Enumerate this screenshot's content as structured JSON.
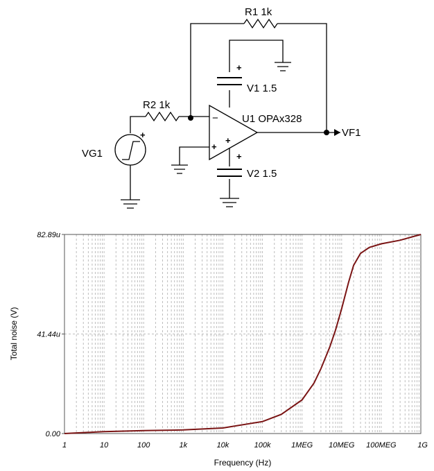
{
  "schematic": {
    "r1": {
      "name": "R1",
      "value": "1k"
    },
    "r2": {
      "name": "R2",
      "value": "1k"
    },
    "v1": {
      "name": "V1",
      "value": "1.5"
    },
    "v2": {
      "name": "V2",
      "value": "1.5"
    },
    "u1": {
      "name": "U1",
      "part": "OPAx328"
    },
    "source": "VG1",
    "output": "VF1",
    "plus_sign": "+",
    "minus_sign": "−"
  },
  "chart_data": {
    "type": "line",
    "xlabel": "Frequency (Hz)",
    "ylabel": "Total noise (V)",
    "x_scale": "log",
    "xlim": [
      1,
      1000000000
    ],
    "ylim": [
      0,
      82.89
    ],
    "grid": true,
    "x_tick_labels": [
      "1",
      "10",
      "100",
      "1k",
      "10k",
      "100k",
      "1MEG",
      "10MEG",
      "100MEG",
      "1G"
    ],
    "y_tick_labels": [
      "0.00",
      "41.44u",
      "82.89u"
    ],
    "y_tick_values": [
      0,
      41.44,
      82.89
    ],
    "series_color": "#7a1414",
    "series": [
      {
        "x": [
          1,
          10,
          100,
          1000,
          10000,
          100000,
          300000,
          1000000,
          2000000,
          3000000,
          5000000,
          7000000,
          10000000,
          15000000,
          20000000,
          30000000,
          50000000,
          100000000,
          300000000,
          1000000000
        ],
        "values": [
          0.0,
          0.8,
          1.2,
          1.5,
          2.3,
          5.0,
          8.0,
          14.0,
          21.0,
          27.0,
          36.0,
          43.0,
          52.0,
          63.0,
          70.0,
          75.0,
          77.5,
          79.0,
          80.5,
          82.89
        ]
      }
    ]
  }
}
